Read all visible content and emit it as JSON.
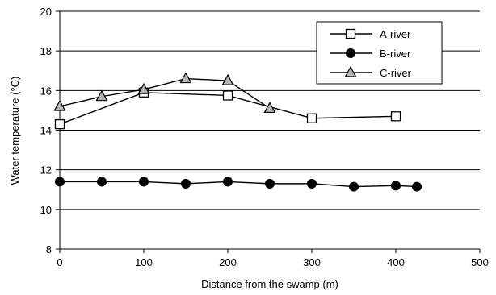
{
  "chart_data": {
    "type": "line",
    "xlabel": "Distance from the swamp (m)",
    "ylabel": "Water temperature (°C)",
    "xlim": [
      0,
      500
    ],
    "ylim": [
      8,
      20
    ],
    "x_ticks": [
      0,
      100,
      200,
      300,
      400,
      500
    ],
    "y_ticks": [
      8,
      10,
      12,
      14,
      16,
      18,
      20
    ],
    "grid": "horizontal",
    "legend_position": "top-right",
    "series": [
      {
        "name": "A-river",
        "marker": "open-square",
        "x": [
          0,
          100,
          200,
          300,
          400
        ],
        "y": [
          14.3,
          15.9,
          15.75,
          14.6,
          14.7
        ]
      },
      {
        "name": "B-river",
        "marker": "filled-circle",
        "x": [
          0,
          50,
          100,
          150,
          200,
          250,
          300,
          350,
          400,
          425
        ],
        "y": [
          11.4,
          11.4,
          11.4,
          11.3,
          11.4,
          11.3,
          11.3,
          11.15,
          11.2,
          11.15
        ]
      },
      {
        "name": "C-river",
        "marker": "gray-triangle",
        "x": [
          0,
          50,
          100,
          150,
          200,
          250
        ],
        "y": [
          15.2,
          15.7,
          16.05,
          16.6,
          16.5,
          15.1
        ]
      }
    ]
  }
}
